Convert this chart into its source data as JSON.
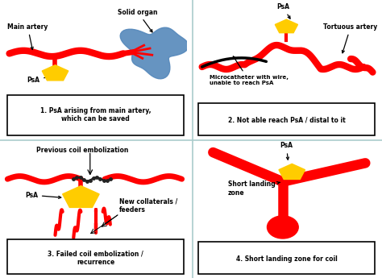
{
  "background_color": "#ffffff",
  "divider_color": "#aacccc",
  "red": "#ff0000",
  "gold": "#ffcc00",
  "gold2": "#f0a800",
  "blue_organ": "#5588bb",
  "black": "#000000",
  "panel1": {
    "title": "1. PsA arising from main artery,\nwhich can be saved"
  },
  "panel2": {
    "title": "2. Not able reach PsA / distal to it"
  },
  "panel3": {
    "title": "3. Failed coil embolization /\nrecurrence"
  },
  "panel4": {
    "title": "4. Short landing zone for coil"
  }
}
